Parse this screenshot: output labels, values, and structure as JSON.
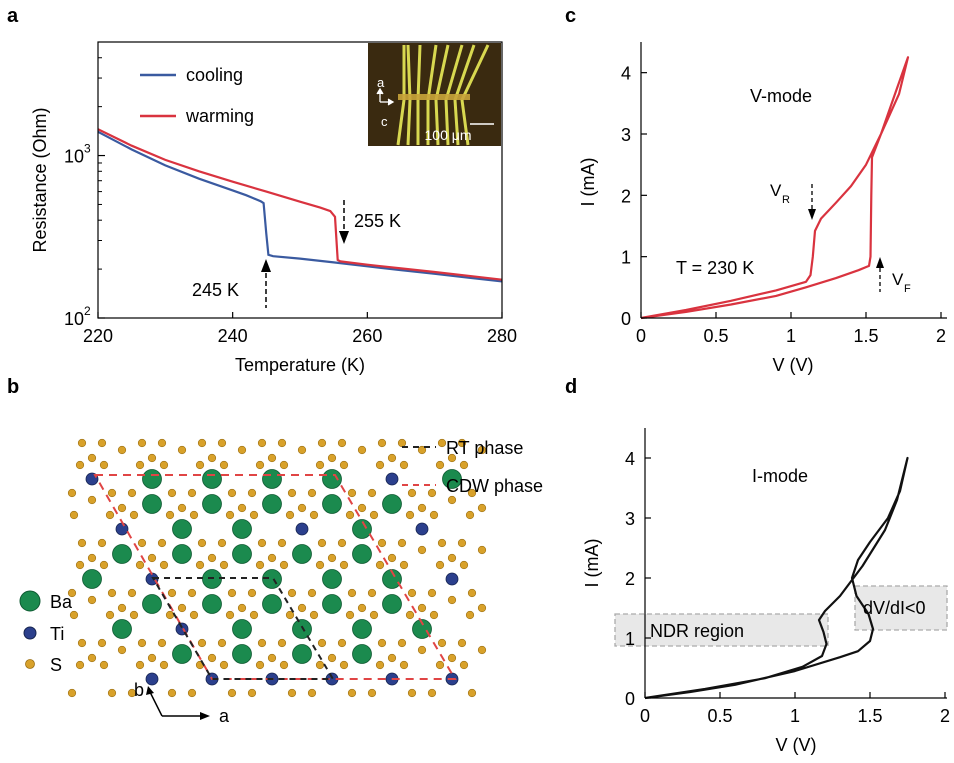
{
  "panel_labels": {
    "a": "a",
    "b": "b",
    "c": "c",
    "d": "d"
  },
  "colors": {
    "cooling": "#3a5aa0",
    "warming": "#d9333f",
    "iv_red": "#d9333f",
    "iv_black": "#111111",
    "ba": "#1b8a4e",
    "ti": "#2b3f8c",
    "s": "#d8a12a",
    "rt_line": "#222222",
    "cdw_line": "#e04545",
    "photo_bg": "#3a2a10",
    "photo_lines": "#d8d850",
    "ndr_box": "#e6e6e6"
  },
  "chart_data": [
    {
      "id": "a",
      "type": "line",
      "xlabel": "Temperature (K)",
      "ylabel": "Resistance (Ohm)",
      "xlim": [
        220,
        280
      ],
      "ylim": [
        100,
        5000
      ],
      "yscale": "log",
      "xticks": [
        220,
        240,
        260,
        280
      ],
      "yticks": [
        {
          "value": 100,
          "base": "10",
          "exp": "2"
        },
        {
          "value": 1000,
          "base": "10",
          "exp": "3"
        }
      ],
      "series": [
        {
          "name": "cooling",
          "color": "#3a5aa0",
          "points": [
            [
              220,
              1400
            ],
            [
              225,
              1090
            ],
            [
              230,
              870
            ],
            [
              235,
              720
            ],
            [
              240,
              610
            ],
            [
              242,
              570
            ],
            [
              243,
              548
            ],
            [
              244.2,
              522
            ],
            [
              244.6,
              510
            ],
            [
              245,
              330
            ],
            [
              245.3,
              245
            ],
            [
              246,
              240
            ],
            [
              250,
              232
            ],
            [
              255,
              220
            ],
            [
              260,
              208
            ],
            [
              265,
              197
            ],
            [
              270,
              187
            ],
            [
              275,
              177
            ],
            [
              280,
              168
            ]
          ]
        },
        {
          "name": "warming",
          "color": "#d9333f",
          "points": [
            [
              220,
              1450
            ],
            [
              225,
              1150
            ],
            [
              230,
              940
            ],
            [
              235,
              800
            ],
            [
              240,
              690
            ],
            [
              245,
              600
            ],
            [
              250,
              520
            ],
            [
              253,
              478
            ],
            [
              254.5,
              455
            ],
            [
              255.2,
              420
            ],
            [
              255.6,
              228
            ],
            [
              256,
              223
            ],
            [
              260,
              213
            ],
            [
              265,
              202
            ],
            [
              270,
              192
            ],
            [
              275,
              182
            ],
            [
              280,
              172
            ]
          ]
        }
      ],
      "annotations": [
        {
          "text": "245 K",
          "x": 245,
          "y": 200,
          "arrow": "up"
        },
        {
          "text": "255 K",
          "x": 255.5,
          "y": 300,
          "arrow": "down"
        }
      ],
      "legend": "top-left",
      "inset": {
        "labels": {
          "axis_a": "a",
          "axis_c": "c",
          "scale": "100 μm"
        }
      }
    },
    {
      "id": "c",
      "type": "line",
      "xlabel": "V (V)",
      "ylabel": "I (mA)",
      "xlim": [
        0,
        2
      ],
      "ylim": [
        0,
        4.5
      ],
      "xticks": [
        0,
        0.5,
        1,
        1.5,
        2
      ],
      "xtick_labels": [
        "0",
        "0.5",
        "1",
        "1.5",
        "2"
      ],
      "yticks": [
        0,
        1,
        2,
        3,
        4
      ],
      "series": [
        {
          "name": "",
          "color": "#d9333f",
          "points": [
            [
              0,
              0
            ],
            [
              0.3,
              0.1
            ],
            [
              0.6,
              0.22
            ],
            [
              0.9,
              0.36
            ],
            [
              1.1,
              0.5
            ],
            [
              1.3,
              0.65
            ],
            [
              1.45,
              0.78
            ],
            [
              1.52,
              0.85
            ],
            [
              1.53,
              1.0
            ],
            [
              1.535,
              2.0
            ],
            [
              1.54,
              2.62
            ],
            [
              1.6,
              3.0
            ],
            [
              1.7,
              3.7
            ],
            [
              1.78,
              4.25
            ],
            [
              1.72,
              3.65
            ],
            [
              1.6,
              3.0
            ],
            [
              1.5,
              2.5
            ],
            [
              1.4,
              2.15
            ],
            [
              1.3,
              1.88
            ],
            [
              1.2,
              1.62
            ],
            [
              1.16,
              1.42
            ],
            [
              1.145,
              1.0
            ],
            [
              1.13,
              0.7
            ],
            [
              1.1,
              0.59
            ],
            [
              0.9,
              0.45
            ],
            [
              0.6,
              0.28
            ],
            [
              0.3,
              0.13
            ],
            [
              0,
              0
            ]
          ]
        }
      ],
      "annotations": [
        {
          "text": "V-mode",
          "x": 0.85,
          "y": 3.75
        },
        {
          "text": "T = 230 K",
          "x": 0.2,
          "y": 0.85
        },
        {
          "text": "V",
          "sub": "R",
          "x": 0.95,
          "y": 2.05
        },
        {
          "text": "V",
          "sub": "F",
          "x": 1.6,
          "y": 0.65
        }
      ]
    },
    {
      "id": "d",
      "type": "line",
      "xlabel": "V (V)",
      "ylabel": "I (mA)",
      "xlim": [
        0,
        2
      ],
      "ylim": [
        0,
        4.5
      ],
      "xticks": [
        0,
        0.5,
        1,
        1.5,
        2
      ],
      "xtick_labels": [
        "0",
        "0.5",
        "1",
        "1.5",
        "2"
      ],
      "yticks": [
        0,
        1,
        2,
        3,
        4
      ],
      "series": [
        {
          "name": "",
          "color": "#111111",
          "points": [
            [
              0,
              0
            ],
            [
              0.4,
              0.15
            ],
            [
              0.8,
              0.33
            ],
            [
              1.05,
              0.52
            ],
            [
              1.18,
              0.7
            ],
            [
              1.21,
              0.9
            ],
            [
              1.19,
              1.1
            ],
            [
              1.16,
              1.3
            ],
            [
              1.2,
              1.45
            ],
            [
              1.3,
              1.7
            ],
            [
              1.45,
              2.2
            ],
            [
              1.6,
              2.8
            ],
            [
              1.68,
              3.3
            ],
            [
              1.75,
              4.0
            ],
            [
              1.7,
              3.45
            ],
            [
              1.62,
              3.0
            ],
            [
              1.5,
              2.6
            ],
            [
              1.42,
              2.3
            ],
            [
              1.38,
              2.0
            ],
            [
              1.41,
              1.7
            ],
            [
              1.49,
              1.4
            ],
            [
              1.52,
              1.15
            ],
            [
              1.5,
              0.95
            ],
            [
              1.42,
              0.78
            ],
            [
              1.3,
              0.68
            ],
            [
              1.0,
              0.45
            ],
            [
              0.6,
              0.22
            ],
            [
              0.3,
              0.1
            ],
            [
              0,
              0
            ]
          ]
        }
      ],
      "annotations": [
        {
          "text": "I-mode",
          "x": 0.8,
          "y": 3.55
        },
        {
          "text": "NDR region",
          "x": 0.4,
          "y": 1.15
        },
        {
          "text": "dV/dI<0",
          "x": 1.55,
          "y": 1.6
        }
      ]
    }
  ],
  "lattice": {
    "legend": [
      {
        "label": "RT phase",
        "color": "#222222"
      },
      {
        "label": "CDW phase",
        "color": "#e04545"
      }
    ],
    "species": [
      {
        "label": "Ba",
        "color": "#1b8a4e"
      },
      {
        "label": "Ti",
        "color": "#2b3f8c"
      },
      {
        "label": "S",
        "color": "#d8a12a"
      }
    ],
    "axes": {
      "a": "a",
      "b": "b"
    }
  }
}
